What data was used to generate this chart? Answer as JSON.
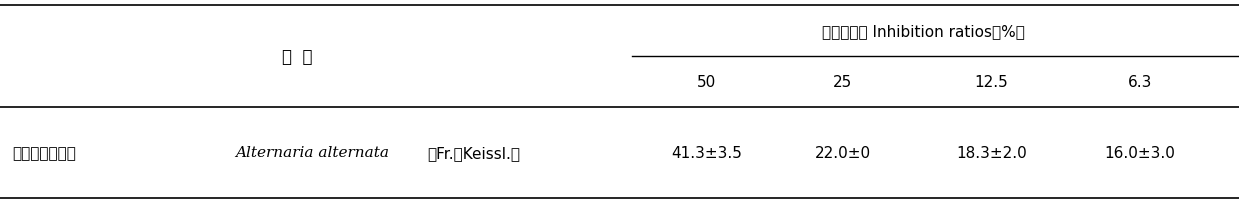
{
  "title_chinese": "抑制生长率 Inhibition ratios（%）",
  "col_header_left": "处  理",
  "col_headers": [
    "50",
    "25",
    "12.5",
    "6.3"
  ],
  "row_label_normal": "多隔链格孢菌（",
  "row_label_italic": "Alternaria alternata",
  "row_label_normal2": "（Fr.）Keissl.）",
  "row_values": [
    "41.3±3.5",
    "22.0±0",
    "18.3±2.0",
    "16.0±3.0"
  ],
  "bg_color": "#ffffff",
  "text_color": "#000000",
  "font_size": 11,
  "header_font_size": 11
}
